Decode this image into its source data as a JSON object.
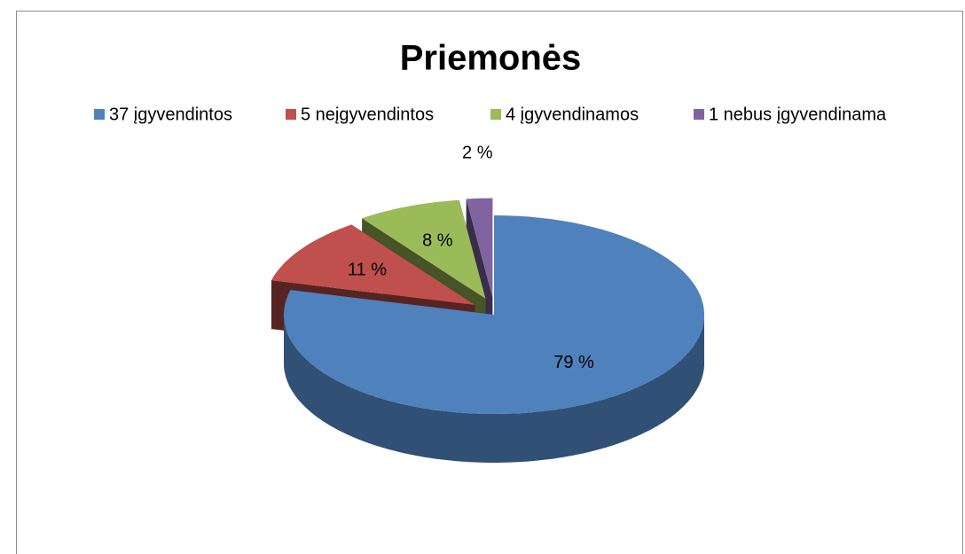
{
  "chart_data": {
    "type": "pie",
    "title": "Priemonės",
    "categories": [
      "37 įgyvendintos",
      "5 neįgyvendintos",
      "4 įgyvendinamos",
      "1 nebus įgyvendinama"
    ],
    "values": [
      79,
      11,
      8,
      2
    ],
    "value_labels": [
      "79 %",
      "11 %",
      "8 %",
      "2 %"
    ],
    "colors": [
      "#4f81bd",
      "#c0504d",
      "#9bbb59",
      "#8064a2"
    ],
    "legend": "top"
  }
}
